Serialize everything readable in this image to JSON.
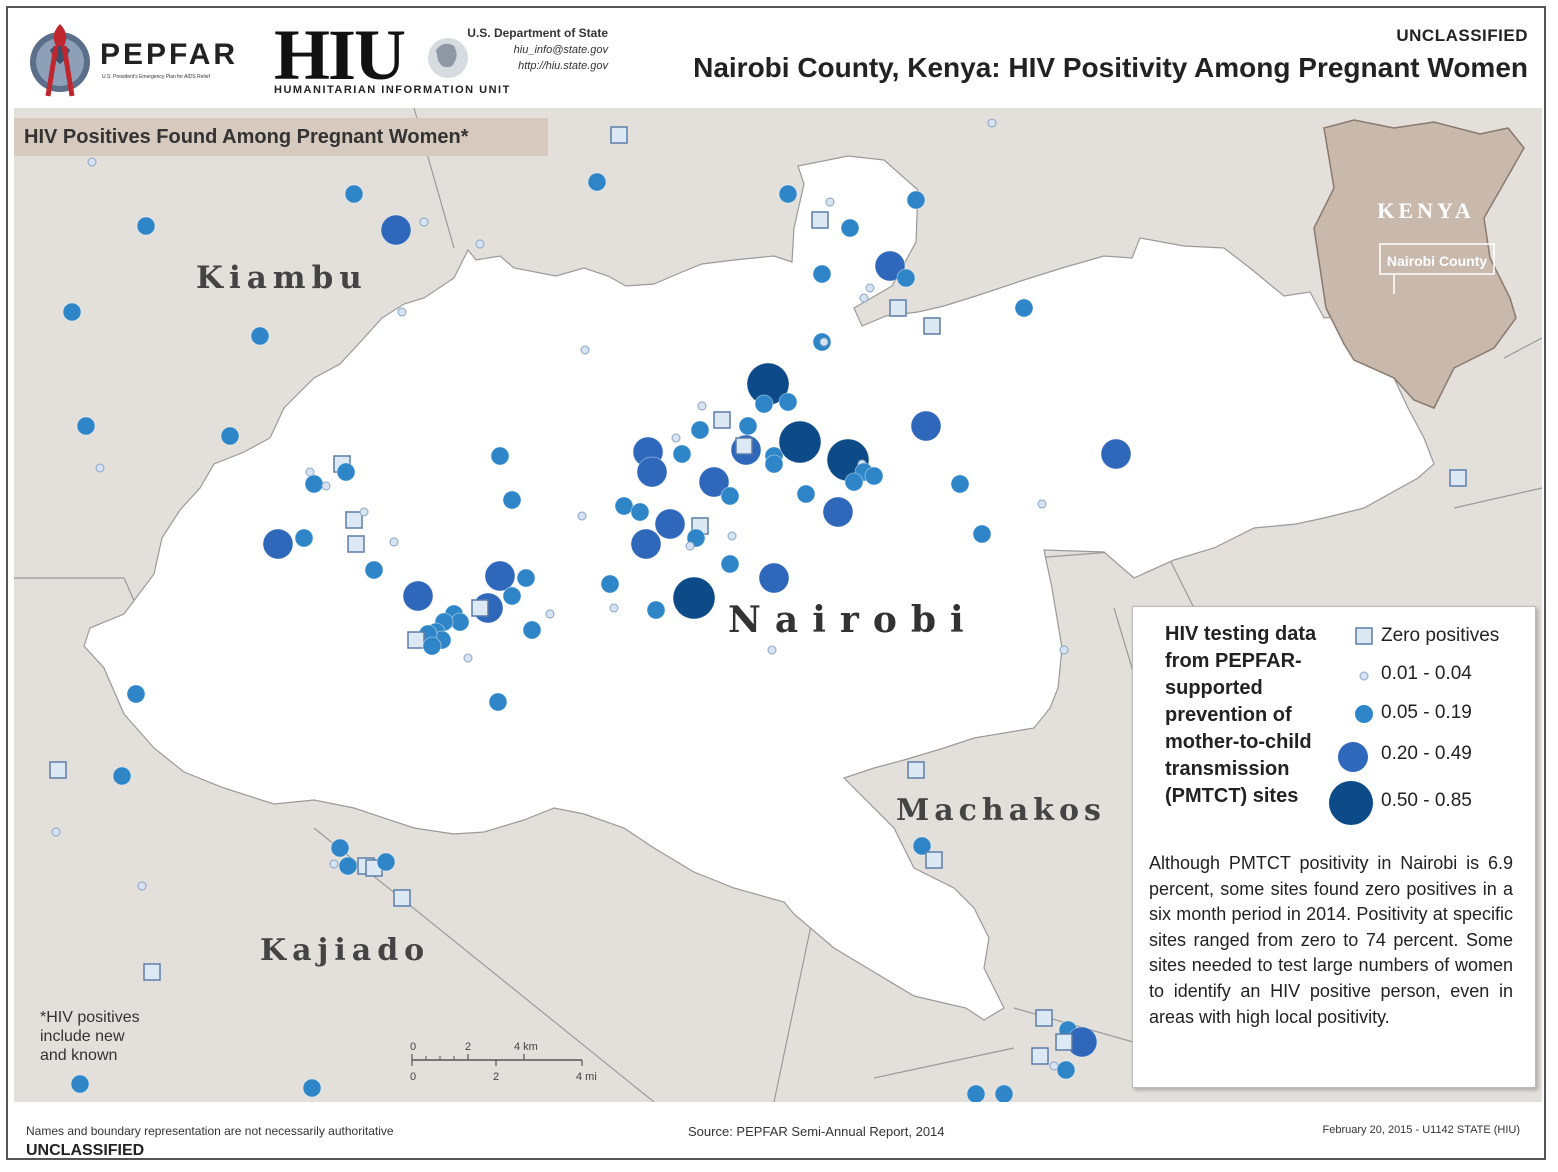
{
  "header": {
    "pepfar_name": "PEPFAR",
    "pepfar_tagline": "U.S. President's Emergency Plan for AIDS Relief",
    "hiu_name": "HIU",
    "hiu_subtitle": "HUMANITARIAN INFORMATION UNIT",
    "dos_name": "U.S. Department of State",
    "dos_email": "hiu_info@state.gov",
    "dos_url": "http://hiu.state.gov",
    "classification": "UNCLASSIFIED",
    "title": "Nairobi County, Kenya: HIV Positivity Among Pregnant Women"
  },
  "subtitle": "HIV Positives Found Among Pregnant Women*",
  "place_labels": {
    "kiambu": "Kiambu",
    "nairobi": "Nairobi",
    "machakos": "Machakos",
    "kajiado": "Kajiado"
  },
  "inset": {
    "country": "KENYA",
    "county": "Nairobi County"
  },
  "footnote": [
    "*HIV positives",
    "include new",
    "and known"
  ],
  "scale_bar": {
    "km_labels": [
      "0",
      "2",
      "4 km"
    ],
    "mi_labels": [
      "0",
      "2",
      "4 mi"
    ]
  },
  "legend": {
    "title": [
      "HIV testing data",
      "from PEPFAR-",
      "supported",
      "prevention of",
      "mother-to-child",
      "transmission",
      "(PMTCT) sites"
    ],
    "classes": [
      "Zero positives",
      "0.01 - 0.04",
      "0.05 - 0.19",
      "0.20 - 0.49",
      "0.50 - 0.85"
    ],
    "note": "Although PMTCT positivity in Nairobi is 6.9 percent, some sites found zero positives in a six month period in 2014. Positivity at specific sites ranged from zero to 74 percent. Some sites needed to test large numbers of women to identify an HIV positive person, even in areas with high local positivity."
  },
  "footer": {
    "disclaimer": "Names and boundary representation are not necessarily authoritative",
    "classification": "UNCLASSIFIED",
    "source": "Source: PEPFAR Semi-Annual Report, 2014",
    "date_code": "February 20, 2015 - U1142 STATE (HIU)"
  },
  "colors": {
    "background_land": "#e3e0dc",
    "nairobi_fill": "#ffffff",
    "inset_land": "#c9b8ac",
    "zero_fill": "#dde8f5",
    "low_fill": "#d6e3f2",
    "mid_fill": "#2e86c8",
    "high_fill": "#2f67bb",
    "top_fill": "#0d4a88"
  }
}
